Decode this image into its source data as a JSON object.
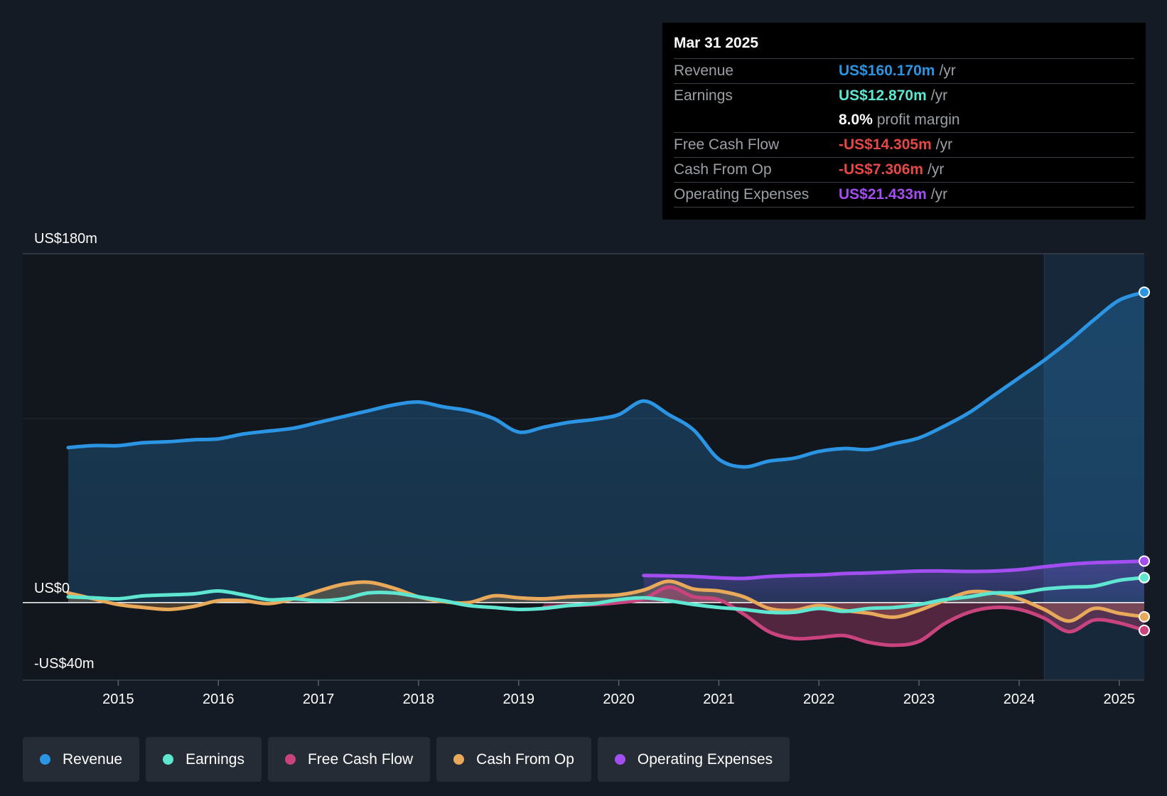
{
  "tooltip": {
    "date": "Mar 31 2025",
    "rows": [
      {
        "label": "Revenue",
        "value": "US$160.170m",
        "unit": "/yr",
        "color": "#2b95e4"
      },
      {
        "label": "Earnings",
        "value": "US$12.870m",
        "unit": "/yr",
        "color": "#5ee6d1"
      },
      {
        "label": "",
        "value": "8.0%",
        "unit": "profit margin",
        "color": "#ffffff"
      },
      {
        "label": "Free Cash Flow",
        "value": "-US$14.305m",
        "unit": "/yr",
        "color": "#e64848"
      },
      {
        "label": "Cash From Op",
        "value": "-US$7.306m",
        "unit": "/yr",
        "color": "#e64848"
      },
      {
        "label": "Operating Expenses",
        "value": "US$21.433m",
        "unit": "/yr",
        "color": "#a24ef0"
      }
    ]
  },
  "legend": [
    {
      "label": "Revenue",
      "color": "#2b95e4"
    },
    {
      "label": "Earnings",
      "color": "#5ee6d1"
    },
    {
      "label": "Free Cash Flow",
      "color": "#c9447e"
    },
    {
      "label": "Cash From Op",
      "color": "#e8a95a"
    },
    {
      "label": "Operating Expenses",
      "color": "#a24ef0"
    }
  ],
  "chart_data": {
    "type": "line",
    "title": "",
    "xlabel": "",
    "ylabel": "",
    "ylim": [
      -40,
      180
    ],
    "y_tick_labels": [
      {
        "value": 180,
        "label": "US$180m"
      },
      {
        "value": 0,
        "label": "US$0"
      },
      {
        "value": -40,
        "label": "-US$40m"
      }
    ],
    "xlim": [
      2014.5,
      2025.25
    ],
    "x_ticks": [
      2015,
      2016,
      2017,
      2018,
      2019,
      2020,
      2021,
      2022,
      2023,
      2024,
      2025
    ],
    "x_tick_labels": [
      "2015",
      "2016",
      "2017",
      "2018",
      "2019",
      "2020",
      "2021",
      "2022",
      "2023",
      "2024",
      "2025"
    ],
    "highlight_from": 2024.25,
    "series": [
      {
        "name": "Revenue",
        "color": "#2b95e4",
        "fill": true,
        "x": [
          2014.5,
          2014.75,
          2015.0,
          2015.25,
          2015.5,
          2015.75,
          2016.0,
          2016.25,
          2016.5,
          2016.75,
          2017.0,
          2017.25,
          2017.5,
          2017.75,
          2018.0,
          2018.25,
          2018.5,
          2018.75,
          2019.0,
          2019.25,
          2019.5,
          2019.75,
          2020.0,
          2020.25,
          2020.5,
          2020.75,
          2021.0,
          2021.25,
          2021.5,
          2021.75,
          2022.0,
          2022.25,
          2022.5,
          2022.75,
          2023.0,
          2023.25,
          2023.5,
          2023.75,
          2024.0,
          2024.25,
          2024.5,
          2024.75,
          2025.0,
          2025.25
        ],
        "values": [
          80,
          81,
          81,
          82.5,
          83,
          84,
          84.5,
          87,
          88.5,
          90,
          93,
          96,
          99,
          102,
          103.5,
          101,
          99,
          95,
          88,
          90.5,
          93,
          94.5,
          97,
          104,
          97,
          89,
          74,
          70,
          73,
          74.5,
          78,
          79.5,
          79,
          82,
          85,
          91,
          98,
          107,
          116,
          125,
          135,
          146,
          156,
          160.17
        ]
      },
      {
        "name": "Earnings",
        "color": "#5ee6d1",
        "fill": false,
        "x": [
          2014.5,
          2014.75,
          2015.0,
          2015.25,
          2015.5,
          2015.75,
          2016.0,
          2016.25,
          2016.5,
          2016.75,
          2017.0,
          2017.25,
          2017.5,
          2017.75,
          2018.0,
          2018.25,
          2018.5,
          2018.75,
          2019.0,
          2019.25,
          2019.5,
          2019.75,
          2020.0,
          2020.25,
          2020.5,
          2020.75,
          2021.0,
          2021.25,
          2021.5,
          2021.75,
          2022.0,
          2022.25,
          2022.5,
          2022.75,
          2023.0,
          2023.25,
          2023.5,
          2023.75,
          2024.0,
          2024.25,
          2024.5,
          2024.75,
          2025.0,
          2025.25
        ],
        "values": [
          3,
          2.5,
          2,
          3.5,
          4,
          4.5,
          6,
          4,
          1.5,
          2,
          1,
          2,
          5,
          5,
          3,
          1,
          -1.5,
          -2.5,
          -3.5,
          -3,
          -1.5,
          -0.5,
          1.5,
          2.5,
          1,
          -1,
          -2.5,
          -3.5,
          -5,
          -5,
          -3,
          -4.5,
          -3,
          -2.5,
          -1,
          1.5,
          3,
          5,
          5,
          7,
          8,
          8.5,
          11.5,
          12.87
        ]
      },
      {
        "name": "Free Cash Flow",
        "color": "#c9447e",
        "fill": true,
        "x": [
          2019.25,
          2019.5,
          2019.75,
          2020.0,
          2020.25,
          2020.5,
          2020.75,
          2021.0,
          2021.25,
          2021.5,
          2021.75,
          2022.0,
          2022.25,
          2022.5,
          2022.75,
          2023.0,
          2023.25,
          2023.5,
          2023.75,
          2024.0,
          2024.25,
          2024.5,
          2024.75,
          2025.0,
          2025.25
        ],
        "values": [
          -2.5,
          -1.5,
          -1,
          0,
          2,
          8,
          3,
          1.5,
          -6,
          -15,
          -18.5,
          -18,
          -17,
          -20.5,
          -22,
          -20,
          -11,
          -5,
          -2.5,
          -3.5,
          -8,
          -15,
          -9,
          -10.5,
          -14.305
        ]
      },
      {
        "name": "Cash From Op",
        "color": "#e8a95a",
        "fill": true,
        "x": [
          2014.5,
          2014.75,
          2015.0,
          2015.25,
          2015.5,
          2015.75,
          2016.0,
          2016.25,
          2016.5,
          2016.75,
          2017.0,
          2017.25,
          2017.5,
          2017.75,
          2018.0,
          2018.25,
          2018.5,
          2018.75,
          2019.0,
          2019.25,
          2019.5,
          2019.75,
          2020.0,
          2020.25,
          2020.5,
          2020.75,
          2021.0,
          2021.25,
          2021.5,
          2021.75,
          2022.0,
          2022.25,
          2022.5,
          2022.75,
          2023.0,
          2023.25,
          2023.5,
          2023.75,
          2024.0,
          2024.25,
          2024.5,
          2024.75,
          2025.0,
          2025.25
        ],
        "values": [
          5,
          2,
          -1,
          -2.5,
          -3.5,
          -2,
          1,
          1,
          -0.5,
          2,
          6,
          9.5,
          10.5,
          7.5,
          3,
          0.5,
          0,
          3.5,
          2.5,
          2,
          3,
          3.5,
          4,
          6.5,
          11,
          7,
          6,
          3,
          -3,
          -4,
          -1.5,
          -4,
          -5.5,
          -7.5,
          -4,
          1,
          5.5,
          5,
          2,
          -3.5,
          -9.5,
          -3,
          -5.5,
          -7.306
        ]
      },
      {
        "name": "Operating Expenses",
        "color": "#a24ef0",
        "fill": true,
        "x": [
          2020.25,
          2020.5,
          2020.75,
          2021.0,
          2021.25,
          2021.5,
          2021.75,
          2022.0,
          2022.25,
          2022.5,
          2022.75,
          2023.0,
          2023.25,
          2023.5,
          2023.75,
          2024.0,
          2024.25,
          2024.5,
          2024.75,
          2025.0,
          2025.25
        ],
        "values": [
          14,
          13.8,
          13.5,
          12.8,
          12.5,
          13.5,
          14,
          14.3,
          15,
          15.3,
          15.8,
          16.3,
          16.3,
          16.1,
          16.3,
          17,
          18.5,
          19.8,
          20.6,
          21,
          21.433
        ]
      }
    ]
  }
}
